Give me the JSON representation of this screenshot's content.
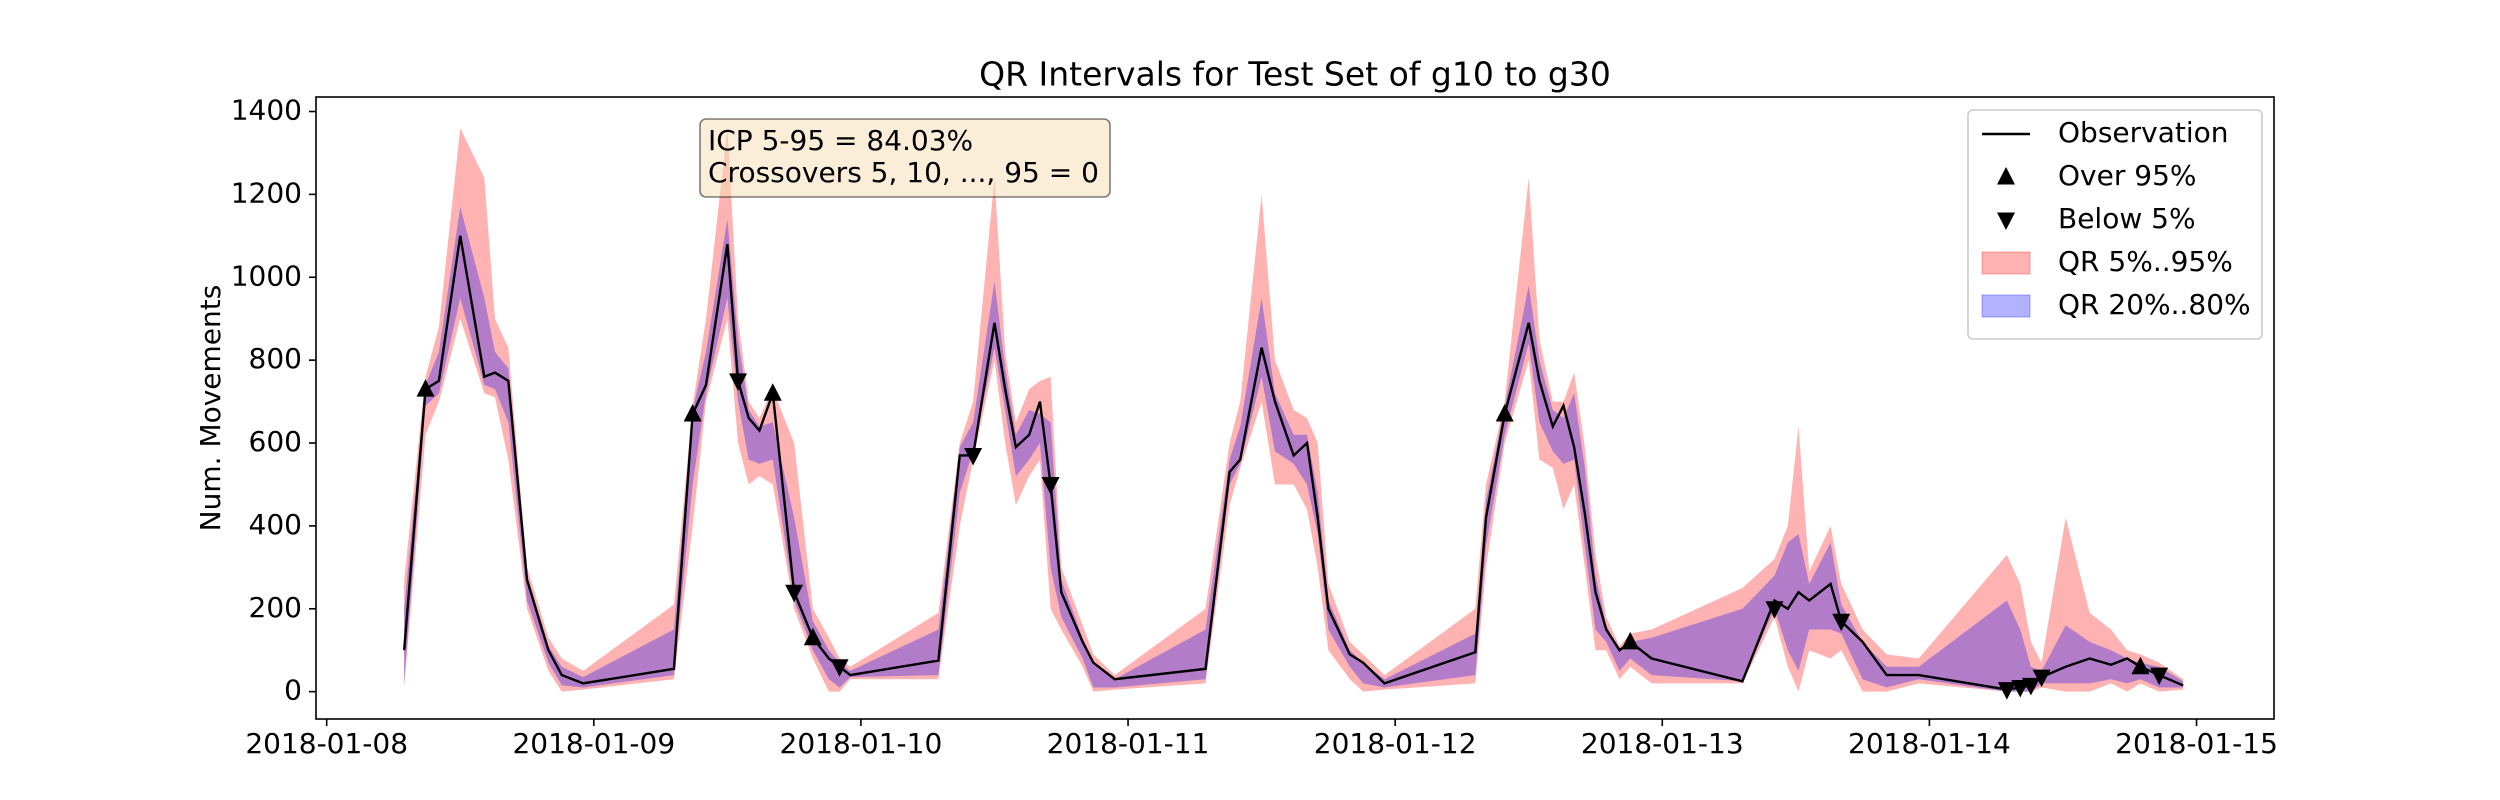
{
  "chart_data": {
    "type": "line",
    "title": "QR Intervals for Test Set of g10 to g30",
    "y_label": "Num. Movements",
    "annotation": [
      "ICP 5-95 = 84.03%",
      "Crossovers 5, 10, ..., 95 = 0"
    ],
    "legend": "upper right",
    "xlim": [
      7.96,
      15.29
    ],
    "ylim": [
      -66,
      1435
    ],
    "xticks": [
      {
        "value": 8,
        "label": "2018-01-08"
      },
      {
        "value": 9,
        "label": "2018-01-09"
      },
      {
        "value": 10,
        "label": "2018-01-10"
      },
      {
        "value": 11,
        "label": "2018-01-11"
      },
      {
        "value": 12,
        "label": "2018-01-12"
      },
      {
        "value": 13,
        "label": "2018-01-13"
      },
      {
        "value": 14,
        "label": "2018-01-14"
      },
      {
        "value": 15,
        "label": "2018-01-15"
      }
    ],
    "yticks": [
      0,
      200,
      400,
      600,
      800,
      1000,
      1200,
      1400
    ],
    "x": [
      8.29,
      8.37,
      8.42,
      8.5,
      8.59,
      8.63,
      8.68,
      8.75,
      8.83,
      8.88,
      8.96,
      9.3,
      9.37,
      9.42,
      9.5,
      9.54,
      9.58,
      9.62,
      9.67,
      9.75,
      9.82,
      9.88,
      9.92,
      9.96,
      10.29,
      10.37,
      10.42,
      10.5,
      10.54,
      10.58,
      10.63,
      10.67,
      10.71,
      10.75,
      10.83,
      10.87,
      10.95,
      11.29,
      11.38,
      11.42,
      11.5,
      11.55,
      11.62,
      11.67,
      11.71,
      11.75,
      11.83,
      11.88,
      11.96,
      12.3,
      12.34,
      12.41,
      12.5,
      12.54,
      12.59,
      12.63,
      12.67,
      12.71,
      12.75,
      12.79,
      12.84,
      12.88,
      12.96,
      13.3,
      13.42,
      13.47,
      13.51,
      13.55,
      13.63,
      13.67,
      13.75,
      13.84,
      13.96,
      14.29,
      14.34,
      14.38,
      14.42,
      14.51,
      14.6,
      14.68,
      14.74,
      14.79,
      14.86,
      14.95
    ],
    "series": [
      {
        "name": "Observation",
        "color": "#000000",
        "values": [
          100,
          730,
          750,
          1100,
          760,
          770,
          750,
          270,
          100,
          40,
          20,
          55,
          670,
          740,
          1080,
          750,
          660,
          630,
          720,
          240,
          130,
          80,
          60,
          40,
          75,
          570,
          570,
          890,
          730,
          590,
          620,
          700,
          500,
          240,
          120,
          70,
          30,
          55,
          530,
          560,
          830,
          700,
          570,
          600,
          420,
          200,
          90,
          70,
          20,
          95,
          420,
          670,
          890,
          750,
          640,
          690,
          590,
          430,
          240,
          150,
          100,
          120,
          80,
          25,
          220,
          200,
          240,
          220,
          260,
          170,
          120,
          40,
          40,
          5,
          10,
          15,
          35,
          60,
          80,
          65,
          80,
          60,
          40,
          15
        ]
      }
    ],
    "bands": [
      {
        "name": "QR 5%..95%",
        "color": "#ff0000",
        "opacity": 0.3,
        "lower": [
          10,
          620,
          700,
          900,
          720,
          710,
          560,
          200,
          50,
          0,
          5,
          30,
          400,
          700,
          900,
          600,
          500,
          520,
          500,
          200,
          80,
          0,
          0,
          30,
          30,
          400,
          560,
          800,
          600,
          450,
          520,
          560,
          200,
          150,
          60,
          0,
          5,
          20,
          450,
          540,
          700,
          500,
          500,
          440,
          300,
          100,
          30,
          0,
          5,
          20,
          300,
          600,
          800,
          560,
          540,
          440,
          500,
          300,
          100,
          100,
          30,
          60,
          20,
          20,
          180,
          60,
          0,
          100,
          80,
          100,
          0,
          0,
          20,
          0,
          0,
          0,
          10,
          0,
          0,
          20,
          0,
          20,
          0,
          5
        ],
        "upper": [
          270,
          760,
          880,
          1360,
          1240,
          900,
          830,
          300,
          130,
          80,
          50,
          210,
          690,
          900,
          1360,
          900,
          700,
          660,
          730,
          600,
          200,
          130,
          80,
          60,
          190,
          600,
          700,
          1240,
          820,
          650,
          730,
          750,
          760,
          300,
          160,
          90,
          40,
          200,
          600,
          700,
          1200,
          800,
          680,
          660,
          600,
          260,
          120,
          90,
          40,
          200,
          500,
          700,
          1240,
          850,
          700,
          700,
          770,
          590,
          330,
          180,
          110,
          140,
          150,
          250,
          320,
          400,
          640,
          290,
          400,
          260,
          150,
          90,
          80,
          330,
          260,
          120,
          70,
          420,
          190,
          150,
          100,
          90,
          70,
          30
        ]
      },
      {
        "name": "QR 20%..80%",
        "color": "#0000ff",
        "opacity": 0.3,
        "lower": [
          20,
          690,
          720,
          950,
          740,
          730,
          650,
          220,
          70,
          15,
          10,
          40,
          500,
          720,
          950,
          700,
          560,
          550,
          560,
          220,
          100,
          30,
          10,
          35,
          40,
          480,
          580,
          830,
          680,
          520,
          560,
          600,
          300,
          180,
          80,
          10,
          10,
          30,
          500,
          550,
          760,
          580,
          550,
          500,
          380,
          150,
          60,
          20,
          10,
          40,
          350,
          620,
          840,
          650,
          580,
          550,
          560,
          350,
          150,
          120,
          50,
          80,
          40,
          25,
          200,
          100,
          50,
          150,
          150,
          140,
          30,
          10,
          30,
          0,
          0,
          0,
          20,
          20,
          20,
          30,
          20,
          30,
          10,
          10
        ],
        "upper": [
          200,
          740,
          820,
          1170,
          950,
          820,
          780,
          280,
          110,
          60,
          35,
          150,
          680,
          820,
          1140,
          850,
          680,
          640,
          650,
          420,
          170,
          100,
          70,
          50,
          150,
          590,
          650,
          990,
          780,
          620,
          680,
          670,
          650,
          270,
          130,
          70,
          30,
          150,
          560,
          640,
          950,
          720,
          620,
          620,
          480,
          220,
          100,
          70,
          30,
          140,
          460,
          690,
          980,
          800,
          680,
          660,
          720,
          540,
          280,
          160,
          100,
          120,
          130,
          200,
          280,
          360,
          380,
          260,
          360,
          210,
          120,
          60,
          60,
          220,
          150,
          60,
          50,
          160,
          120,
          100,
          80,
          70,
          60,
          25
        ]
      }
    ],
    "markers": [
      {
        "name": "Over 95%",
        "marker": "up",
        "color": "#000000",
        "x": [
          8.37,
          9.37,
          9.67,
          9.82,
          12.41,
          12.88,
          14.79
        ],
        "values": [
          730,
          670,
          720,
          130,
          670,
          120,
          60
        ]
      },
      {
        "name": "Below 5%",
        "marker": "down",
        "color": "#000000",
        "x": [
          9.54,
          9.75,
          9.92,
          10.42,
          10.71,
          13.42,
          13.67,
          14.29,
          14.34,
          14.38,
          14.42,
          14.86
        ],
        "values": [
          750,
          240,
          60,
          570,
          500,
          200,
          170,
          5,
          10,
          15,
          35,
          40
        ]
      }
    ]
  }
}
